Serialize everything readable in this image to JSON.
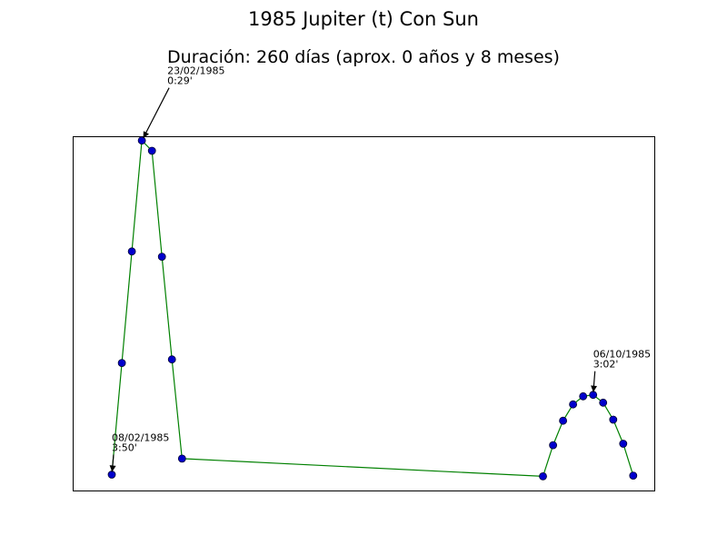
{
  "chart_data": {
    "type": "line",
    "title": "1985 Jupiter (t) Con Sun",
    "subtitle": "Duración: 260 días (aprox. 0 años y 8 meses)",
    "xlabel": "",
    "ylabel": "",
    "grid": false,
    "axis_ticks_visible": false,
    "colors": {
      "line": "#008000",
      "marker_fill": "#0000cc",
      "marker_edge": "#000033",
      "frame": "#000000"
    },
    "series": [
      {
        "values": [
          {
            "x": 0,
            "y": 0.045
          },
          {
            "x": 1,
            "y": 0.36
          },
          {
            "x": 2,
            "y": 0.675
          },
          {
            "x": 3,
            "y": 0.988
          },
          {
            "x": 4,
            "y": 0.959
          },
          {
            "x": 5,
            "y": 0.66
          },
          {
            "x": 6,
            "y": 0.37
          },
          {
            "x": 7,
            "y": 0.09
          },
          {
            "x": 43,
            "y": 0.04
          },
          {
            "x": 44,
            "y": 0.128
          },
          {
            "x": 45,
            "y": 0.197
          },
          {
            "x": 46,
            "y": 0.243
          },
          {
            "x": 47,
            "y": 0.266
          },
          {
            "x": 48,
            "y": 0.27
          },
          {
            "x": 49,
            "y": 0.248
          },
          {
            "x": 50,
            "y": 0.2
          },
          {
            "x": 51,
            "y": 0.132
          },
          {
            "x": 52,
            "y": 0.042
          }
        ]
      }
    ],
    "xlim": [
      -3.9,
      54.1
    ],
    "ylim": [
      0,
      1
    ],
    "annotations": [
      {
        "point_index": 0,
        "date": "08/02/1985",
        "value": "3:50'"
      },
      {
        "point_index": 3,
        "date": "23/02/1985",
        "value": "0:29'"
      },
      {
        "point_index": 13,
        "date": "06/10/1985",
        "value": "3:02'"
      }
    ]
  }
}
